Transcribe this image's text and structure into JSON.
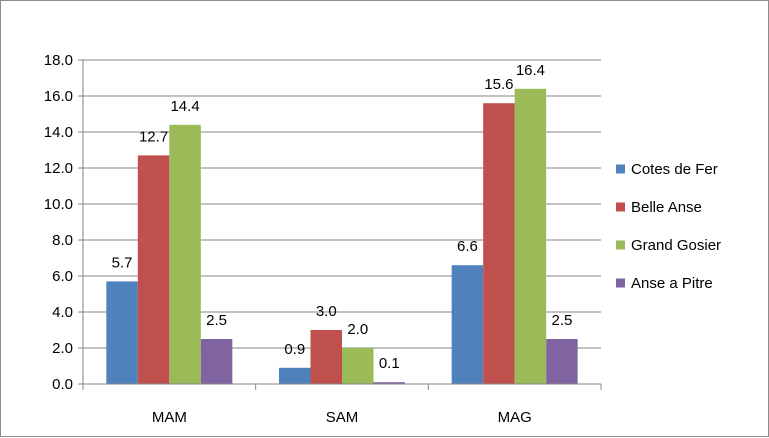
{
  "chart_data": {
    "type": "bar",
    "categories": [
      "MAM",
      "SAM",
      "MAG"
    ],
    "series": [
      {
        "name": "Cotes de Fer",
        "color": "#4f81bd",
        "values": [
          5.7,
          0.9,
          6.6
        ],
        "labels": [
          "5.7",
          "0.9",
          "6.6"
        ]
      },
      {
        "name": "Belle Anse",
        "color": "#c0504d",
        "values": [
          12.7,
          3.0,
          15.6
        ],
        "labels": [
          "12.7",
          "3.0",
          "15.6"
        ]
      },
      {
        "name": "Grand Gosier",
        "color": "#9bbb59",
        "values": [
          14.4,
          2.0,
          16.4
        ],
        "labels": [
          "14.4",
          "2.0",
          "16.4"
        ]
      },
      {
        "name": "Anse a Pitre",
        "color": "#8064a2",
        "values": [
          2.5,
          0.1,
          2.5
        ],
        "labels": [
          "2.5",
          "0.1",
          "2.5"
        ]
      }
    ],
    "y_ticks": [
      "0.0",
      "2.0",
      "4.0",
      "6.0",
      "8.0",
      "10.0",
      "12.0",
      "14.0",
      "16.0",
      "18.0"
    ],
    "ylim": [
      0,
      18
    ],
    "grid": true,
    "legend_position": "right",
    "title": "",
    "xlabel": "",
    "ylabel": ""
  }
}
